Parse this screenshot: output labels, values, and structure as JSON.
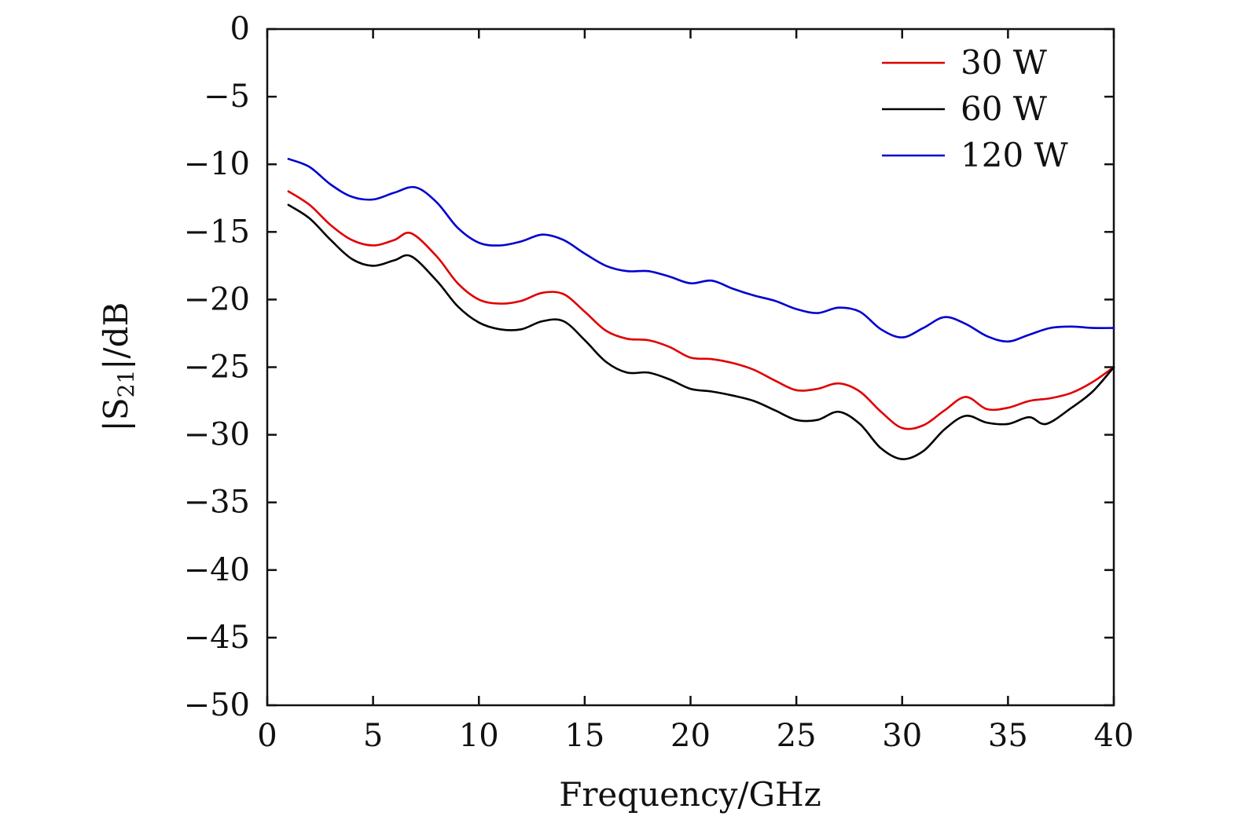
{
  "chart_data": {
    "type": "line",
    "xlabel": "Frequency/GHz",
    "ylabel_parts": {
      "prefix": "|S",
      "subscript": "21",
      "suffix": "|/dB"
    },
    "xlim": [
      0,
      40
    ],
    "ylim": [
      -50,
      0
    ],
    "xticks": [
      0,
      5,
      10,
      15,
      20,
      25,
      30,
      35,
      40
    ],
    "yticks": [
      0,
      -5,
      -10,
      -15,
      -20,
      -25,
      -30,
      -35,
      -40,
      -45,
      -50
    ],
    "grid": false,
    "legend_position": "top-right",
    "series": [
      {
        "name": "30 W",
        "color": "#e00000",
        "points": [
          [
            1,
            -12.0
          ],
          [
            2,
            -13.0
          ],
          [
            3,
            -14.5
          ],
          [
            4,
            -15.6
          ],
          [
            5,
            -16.0
          ],
          [
            6,
            -15.6
          ],
          [
            6.8,
            -15.1
          ],
          [
            8,
            -16.8
          ],
          [
            9,
            -18.8
          ],
          [
            10,
            -20.0
          ],
          [
            11,
            -20.3
          ],
          [
            12,
            -20.1
          ],
          [
            13,
            -19.5
          ],
          [
            14,
            -19.6
          ],
          [
            15,
            -20.9
          ],
          [
            16,
            -22.3
          ],
          [
            17,
            -22.9
          ],
          [
            18,
            -23.0
          ],
          [
            19,
            -23.5
          ],
          [
            20,
            -24.3
          ],
          [
            21,
            -24.4
          ],
          [
            22,
            -24.7
          ],
          [
            23,
            -25.2
          ],
          [
            24,
            -26.0
          ],
          [
            25,
            -26.7
          ],
          [
            26,
            -26.6
          ],
          [
            27,
            -26.2
          ],
          [
            28,
            -26.8
          ],
          [
            29,
            -28.3
          ],
          [
            30,
            -29.5
          ],
          [
            31,
            -29.3
          ],
          [
            32,
            -28.2
          ],
          [
            33,
            -27.2
          ],
          [
            34,
            -28.1
          ],
          [
            35,
            -28.0
          ],
          [
            36,
            -27.5
          ],
          [
            37,
            -27.3
          ],
          [
            38,
            -26.9
          ],
          [
            39,
            -26.1
          ],
          [
            40,
            -25.0
          ]
        ]
      },
      {
        "name": "60 W",
        "color": "#000000",
        "points": [
          [
            1,
            -13.0
          ],
          [
            2,
            -14.0
          ],
          [
            3,
            -15.6
          ],
          [
            4,
            -17.0
          ],
          [
            5,
            -17.5
          ],
          [
            6,
            -17.1
          ],
          [
            6.8,
            -16.8
          ],
          [
            8,
            -18.6
          ],
          [
            9,
            -20.5
          ],
          [
            10,
            -21.7
          ],
          [
            11,
            -22.2
          ],
          [
            12,
            -22.2
          ],
          [
            13,
            -21.6
          ],
          [
            14,
            -21.6
          ],
          [
            15,
            -23.0
          ],
          [
            16,
            -24.6
          ],
          [
            17,
            -25.4
          ],
          [
            18,
            -25.4
          ],
          [
            19,
            -25.9
          ],
          [
            20,
            -26.6
          ],
          [
            21,
            -26.8
          ],
          [
            22,
            -27.1
          ],
          [
            23,
            -27.5
          ],
          [
            24,
            -28.2
          ],
          [
            25,
            -28.9
          ],
          [
            26,
            -28.9
          ],
          [
            27,
            -28.3
          ],
          [
            28,
            -29.2
          ],
          [
            29,
            -31.0
          ],
          [
            30,
            -31.8
          ],
          [
            31,
            -31.2
          ],
          [
            32,
            -29.6
          ],
          [
            33,
            -28.6
          ],
          [
            34,
            -29.1
          ],
          [
            35,
            -29.2
          ],
          [
            36,
            -28.7
          ],
          [
            36.8,
            -29.2
          ],
          [
            38,
            -28.0
          ],
          [
            39,
            -26.8
          ],
          [
            40,
            -25.0
          ]
        ]
      },
      {
        "name": "120 W",
        "color": "#0000d0",
        "points": [
          [
            1,
            -9.6
          ],
          [
            2,
            -10.2
          ],
          [
            3,
            -11.5
          ],
          [
            4,
            -12.4
          ],
          [
            5,
            -12.6
          ],
          [
            6,
            -12.1
          ],
          [
            7,
            -11.7
          ],
          [
            8,
            -12.8
          ],
          [
            9,
            -14.7
          ],
          [
            10,
            -15.8
          ],
          [
            11,
            -16.0
          ],
          [
            12,
            -15.7
          ],
          [
            13,
            -15.2
          ],
          [
            14,
            -15.6
          ],
          [
            15,
            -16.6
          ],
          [
            16,
            -17.5
          ],
          [
            17,
            -17.9
          ],
          [
            18,
            -17.9
          ],
          [
            19,
            -18.3
          ],
          [
            20,
            -18.8
          ],
          [
            21,
            -18.6
          ],
          [
            22,
            -19.2
          ],
          [
            23,
            -19.7
          ],
          [
            24,
            -20.1
          ],
          [
            25,
            -20.7
          ],
          [
            26,
            -21.0
          ],
          [
            27,
            -20.6
          ],
          [
            28,
            -20.9
          ],
          [
            29,
            -22.2
          ],
          [
            30,
            -22.8
          ],
          [
            31,
            -22.1
          ],
          [
            32,
            -21.3
          ],
          [
            33,
            -21.8
          ],
          [
            34,
            -22.7
          ],
          [
            35,
            -23.1
          ],
          [
            36,
            -22.6
          ],
          [
            37,
            -22.1
          ],
          [
            38,
            -22.0
          ],
          [
            39,
            -22.1
          ],
          [
            40,
            -22.1
          ]
        ]
      }
    ]
  }
}
